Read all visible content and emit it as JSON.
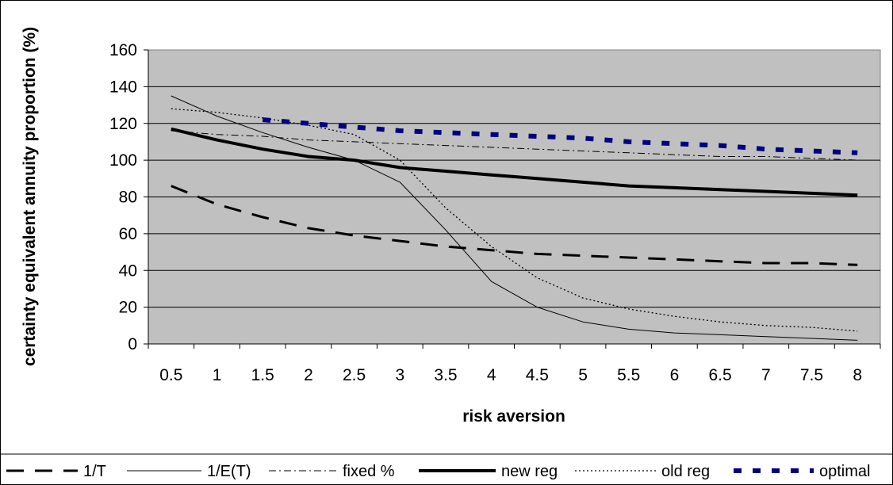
{
  "chart_data": {
    "type": "line",
    "xlabel": "risk aversion",
    "ylabel": "certainty equivalent annuity proportion (%)",
    "categories": [
      "0.5",
      "1",
      "1.5",
      "2",
      "2.5",
      "3",
      "3.5",
      "4",
      "4.5",
      "5",
      "5.5",
      "6",
      "6.5",
      "7",
      "7.5",
      "8"
    ],
    "yticks": [
      "0",
      "20",
      "40",
      "60",
      "80",
      "100",
      "120",
      "140",
      "160"
    ],
    "ylim": [
      0,
      160
    ],
    "grid": true,
    "legend_position": "bottom",
    "plot_background": "#c0c0c0",
    "series": [
      {
        "name": "1/T",
        "color": "#000000",
        "style": "long-dash",
        "values": [
          86,
          76,
          69,
          63,
          59,
          56,
          53,
          51,
          49,
          48,
          47,
          46,
          45,
          44,
          44,
          43
        ]
      },
      {
        "name": "1/E(T)",
        "color": "#000000",
        "style": "thin-solid",
        "values": [
          135,
          124,
          115,
          107,
          100,
          88,
          62,
          34,
          20,
          12,
          8,
          6,
          5,
          4,
          3,
          2
        ]
      },
      {
        "name": "fixed %",
        "color": "#000000",
        "style": "dash-dot",
        "values": [
          116,
          114,
          113,
          111,
          110,
          109,
          108,
          107,
          106,
          105,
          104,
          103,
          102,
          102,
          101,
          100
        ]
      },
      {
        "name": "new reg",
        "color": "#000000",
        "style": "thick-solid",
        "values": [
          117,
          111,
          106,
          102,
          100,
          96,
          94,
          92,
          90,
          88,
          86,
          85,
          84,
          83,
          82,
          81
        ]
      },
      {
        "name": "old reg",
        "color": "#000000",
        "style": "dotted",
        "values": [
          128,
          126,
          123,
          119,
          114,
          100,
          74,
          53,
          36,
          25,
          19,
          15,
          12,
          10,
          9,
          7
        ]
      },
      {
        "name": "optimal",
        "color": "#000080",
        "style": "thick-dash",
        "values": [
          null,
          null,
          122,
          120,
          118,
          116,
          115,
          114,
          113,
          112,
          110,
          109,
          108,
          106,
          105,
          104
        ]
      }
    ]
  }
}
